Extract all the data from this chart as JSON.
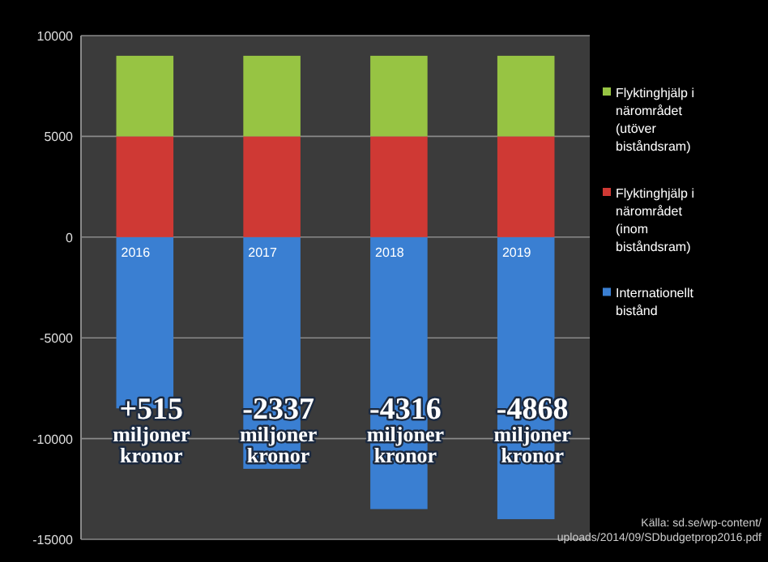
{
  "chart_data": {
    "type": "bar",
    "stacked": true,
    "categories": [
      "2016",
      "2017",
      "2018",
      "2019"
    ],
    "series": [
      {
        "name": "Internationellt bistånd",
        "color": "#3a7fd2",
        "values": [
          -8500,
          -11500,
          -13500,
          -14000
        ]
      },
      {
        "name": "Flyktinghjälp i närområdet (inom biståndsram)",
        "color": "#cf3934",
        "values": [
          5000,
          5000,
          5000,
          5000
        ]
      },
      {
        "name": "Flyktinghjälp i närområdet (utöver biståndsram)",
        "color": "#97c443",
        "values": [
          4000,
          4000,
          4000,
          4000
        ]
      }
    ],
    "ylim": [
      -15000,
      10000
    ],
    "yticks": [
      -15000,
      -10000,
      -5000,
      0,
      5000,
      10000
    ],
    "grid": "y",
    "legend": "right",
    "annotations": [
      "+515 miljoner kronor",
      "-2337 miljoner kronor",
      "-4316 miljoner kronor",
      "-4868 miljoner kronor",
      "Källa: sd.se/wp-content/uploads/2014/09/SDbudgetprop2016.pdf"
    ]
  }
}
